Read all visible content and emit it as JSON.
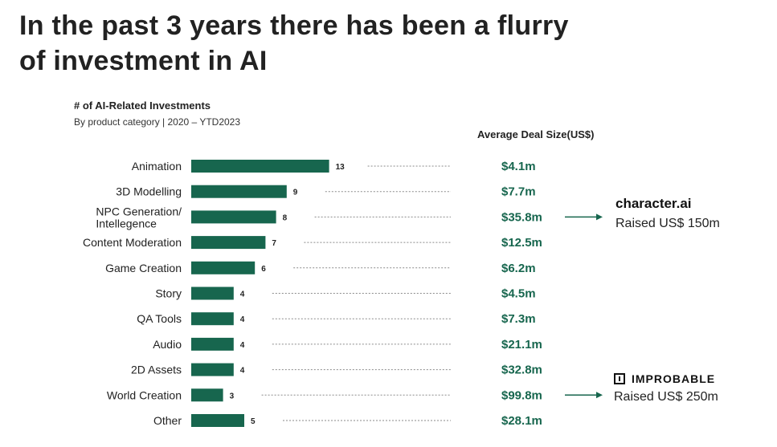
{
  "headline": "In the past 3 years there has been a flurry of investment in AI",
  "chart_data": {
    "type": "bar",
    "orientation": "horizontal",
    "title": "# of AI-Related Investments",
    "subtitle": "By product category | 2020 – YTD2023",
    "categories": [
      "Animation",
      "3D Modelling",
      "NPC Generation/ Intellegence",
      "Content Moderation",
      "Game Creation",
      "Story",
      "QA Tools",
      "Audio",
      "2D Assets",
      "World Creation",
      "Other"
    ],
    "values": [
      13,
      9,
      8,
      7,
      6,
      4,
      4,
      4,
      4,
      3,
      5
    ],
    "deal_size_header": "Average Deal Size(US$)",
    "deal_sizes": [
      "$4.1m",
      "$7.7m",
      "$35.8m",
      "$12.5m",
      "$6.2m",
      "$4.5m",
      "$7.3m",
      "$21.1m",
      "$32.8m",
      "$99.8m",
      "$28.1m"
    ],
    "bar_color": "#17664e",
    "deal_color": "#17664e"
  },
  "callouts": {
    "character_ai": {
      "brand": "character.ai",
      "raised": "Raised US$ 150m",
      "icon": "arrow-right-icon"
    },
    "improbable": {
      "brand": "IMPROBABLE",
      "raised": "Raised US$ 250m",
      "icon": "improbable-logo-icon"
    }
  }
}
